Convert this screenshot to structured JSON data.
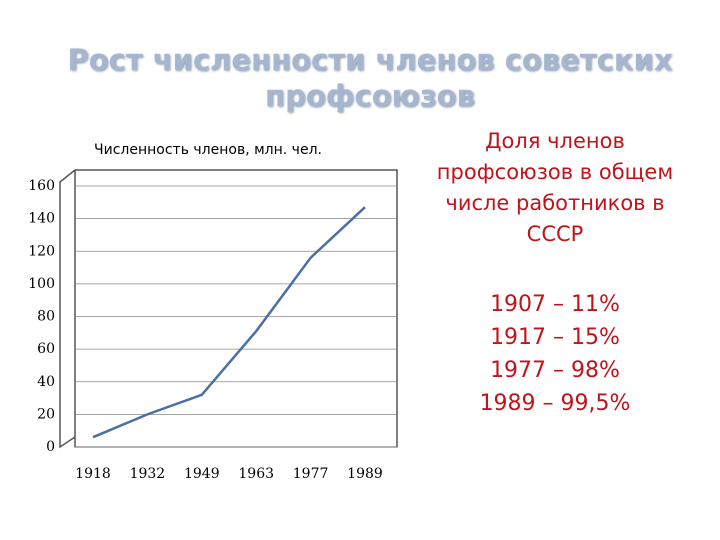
{
  "chart_data": {
    "type": "line",
    "title": "Рост численности членов советских профсоюзов",
    "y_label": "Численность членов, млн. чел.",
    "categories": [
      "1918",
      "1932",
      "1949",
      "1963",
      "1977",
      "1989"
    ],
    "values": [
      6,
      20,
      32,
      71,
      116,
      147
    ],
    "color": "#4a6fa5",
    "ylim": [
      0,
      160
    ],
    "yticks": [
      0,
      20,
      40,
      60,
      80,
      100,
      120,
      140,
      160
    ],
    "grid": true
  },
  "side_note": {
    "heading_lines": [
      "Доля членов",
      "профсоюзов в общем",
      "числе работников в",
      "СССР"
    ],
    "items": [
      "1907 – 11%",
      "1917 – 15%",
      "1977 – 98%",
      "1989 – 99,5%"
    ]
  }
}
